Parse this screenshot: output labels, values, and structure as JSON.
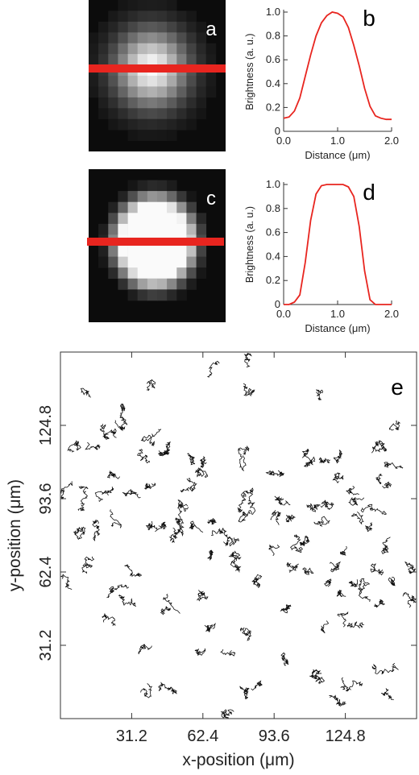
{
  "panels": {
    "a": {
      "label": "a"
    },
    "b": {
      "label": "b"
    },
    "c": {
      "label": "c"
    },
    "d": {
      "label": "d"
    },
    "e": {
      "label": "e"
    }
  },
  "colors": {
    "profile_line": "#e8251f",
    "track": "#111111",
    "axis": "#333333",
    "image_bg": "#0c0c0c"
  },
  "chart_data": [
    {
      "type": "line",
      "panel": "b",
      "xlabel": "Distance (μm)",
      "ylabel": "Brightness (a. u.)",
      "xlim": [
        0,
        2
      ],
      "ylim": [
        0,
        1
      ],
      "xticks": [
        "0.0",
        "1.0",
        "2.0"
      ],
      "yticks": [
        "0",
        "0.2",
        "0.4",
        "0.6",
        "0.8",
        "1.0"
      ],
      "x": [
        0.0,
        0.1,
        0.2,
        0.3,
        0.4,
        0.5,
        0.6,
        0.7,
        0.8,
        0.9,
        1.0,
        1.1,
        1.2,
        1.3,
        1.4,
        1.5,
        1.6,
        1.7,
        1.8,
        1.9,
        2.0
      ],
      "y": [
        0.11,
        0.12,
        0.17,
        0.28,
        0.46,
        0.64,
        0.8,
        0.91,
        0.97,
        1.0,
        0.99,
        0.96,
        0.87,
        0.72,
        0.55,
        0.36,
        0.21,
        0.13,
        0.11,
        0.1,
        0.1
      ]
    },
    {
      "type": "line",
      "panel": "d",
      "xlabel": "Distance (μm)",
      "ylabel": "Brightness (a. u.)",
      "xlim": [
        0,
        2
      ],
      "ylim": [
        0,
        1
      ],
      "xticks": [
        "0.0",
        "1.0",
        "2.0"
      ],
      "yticks": [
        "0",
        "0.2",
        "0.4",
        "0.6",
        "0.8",
        "1.0"
      ],
      "x": [
        0.0,
        0.1,
        0.2,
        0.3,
        0.4,
        0.5,
        0.6,
        0.7,
        0.8,
        0.9,
        1.0,
        1.1,
        1.2,
        1.3,
        1.4,
        1.5,
        1.6,
        1.7,
        1.8,
        1.9,
        2.0
      ],
      "y": [
        0.0,
        0.0,
        0.02,
        0.08,
        0.35,
        0.7,
        0.92,
        0.99,
        1.0,
        1.0,
        1.0,
        1.0,
        0.98,
        0.9,
        0.65,
        0.28,
        0.04,
        0.0,
        0.0,
        0.0,
        0.0
      ]
    },
    {
      "type": "scatter",
      "panel": "e",
      "xlabel": "x-position (μm)",
      "ylabel": "y-position (μm)",
      "xlim": [
        0,
        156
      ],
      "ylim": [
        0,
        156
      ],
      "xticks": [
        "31.2",
        "62.4",
        "93.6",
        "124.8"
      ],
      "yticks": [
        "31.2",
        "62.4",
        "93.6",
        "124.8"
      ],
      "xtick_values": [
        31.2,
        62.4,
        93.6,
        124.8
      ],
      "ytick_values": [
        31.2,
        62.4,
        93.6,
        124.8
      ],
      "series": [
        {
          "x": [
            69,
            83,
            40,
            84,
            112,
            17,
            80,
            36,
            56,
            47,
            43,
            40,
            21,
            52,
            30,
            7,
            15,
            50,
            40,
            110,
            123,
            122,
            128,
            117,
            141,
            142,
            146,
            138,
            111,
            113,
            136,
            105,
            95,
            76,
            82,
            92,
            80,
            78,
            66,
            56,
            58,
            56,
            43,
            66,
            14,
            26,
            19,
            5,
            48,
            34,
            61,
            75,
            78,
            87,
            64,
            83,
            99,
            107,
            104,
            101,
            118,
            124,
            118,
            140,
            146,
            150,
            143,
            138,
            131,
            125,
            133,
            75,
            59,
            40,
            38,
            49,
            76,
            82,
            86,
            114,
            98,
            113,
            118,
            146,
            138,
            131,
            124,
            9,
            26,
            19,
            21,
            8,
            5,
            24,
            60,
            94,
            106,
            118,
            133,
            130,
            140,
            150,
            152,
            141,
            129,
            97,
            101,
            65,
            51,
            64,
            43,
            28,
            12,
            22,
            47,
            30,
            115
          ],
          "y": [
            152,
            150,
            144,
            139,
            139,
            115,
            112,
            114,
            113,
            113,
            113,
            100,
            95,
            91,
            96,
            80,
            77,
            75,
            84,
            110,
            112,
            101,
            99,
            92,
            99,
            115,
            123,
            116,
            91,
            84,
            80,
            74,
            74,
            77,
            97,
            85,
            88,
            84,
            78,
            102,
            82,
            90,
            82,
            70,
            69,
            52,
            41,
            55,
            47,
            61,
            54,
            66,
            64,
            61,
            39,
            35,
            47,
            63,
            72,
            66,
            66,
            71,
            58,
            63,
            57,
            52,
            72,
            48,
            53,
            52,
            40,
            29,
            29,
            31,
            15,
            11,
            3,
            13,
            15,
            19,
            26,
            15,
            9,
            8,
            22,
            15,
            39,
            99,
            103,
            121,
            121,
            118,
            101,
            127,
            106,
            104,
            111,
            110,
            94,
            88,
            104,
            107,
            66,
            87,
            57,
            94,
            85,
            84,
            85,
            109,
            123,
            133,
            139,
            89,
            53,
            56,
            38
          ]
        }
      ]
    }
  ]
}
